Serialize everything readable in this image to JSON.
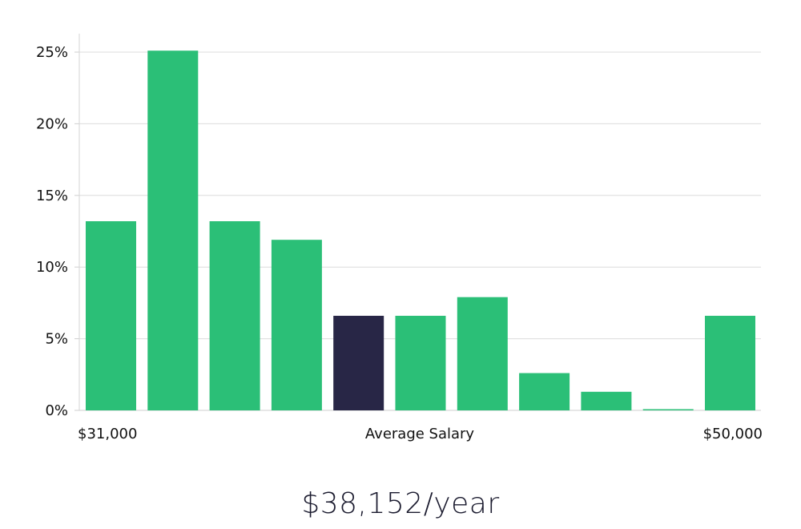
{
  "chart_data": {
    "type": "bar",
    "title": "",
    "xlabel": "Average Salary",
    "ylabel": "",
    "x_start_label": "$31,000",
    "x_end_label": "$50,000",
    "ylim": [
      0,
      25
    ],
    "yticks": [
      0,
      5,
      10,
      15,
      20,
      25
    ],
    "ytick_labels": [
      "0%",
      "5%",
      "10%",
      "15%",
      "20%",
      "25%"
    ],
    "grid": true,
    "values": [
      13.2,
      25.1,
      13.2,
      11.9,
      6.6,
      6.6,
      7.9,
      2.6,
      1.3,
      0.05,
      6.6
    ],
    "highlight_index": 4,
    "bar_color": "#2bbf77",
    "highlight_color": "#282646"
  },
  "summary": {
    "salary": "$38,152/year"
  }
}
